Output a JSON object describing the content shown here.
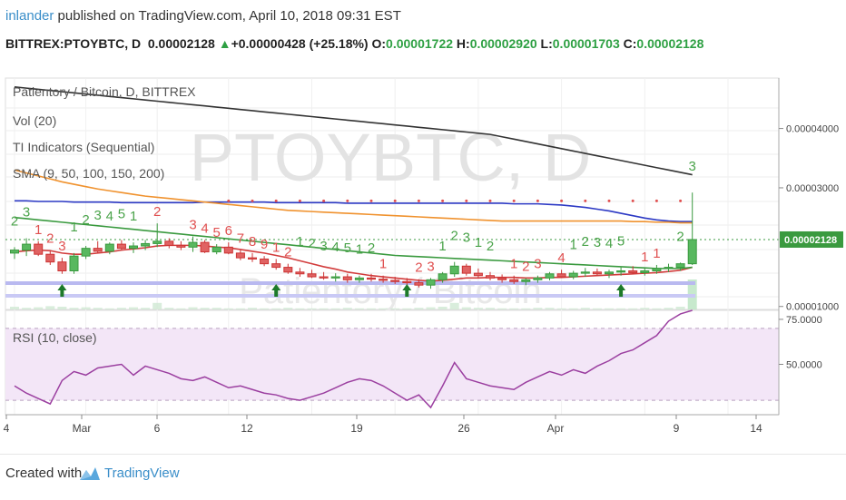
{
  "header": {
    "author": "inlander",
    "published": "published on TradingView.com, April 10, 2018 09:31 EST",
    "symbol": "BITTREX:PTOYBTC, D",
    "last": "0.00002128",
    "change": "+0.00000428 (+25.18%)",
    "o_label": "O:",
    "o_value": "0.00001722",
    "h_label": "H:",
    "h_value": "0.00002920",
    "l_label": "L:",
    "l_value": "0.00001703",
    "c_label": "C:",
    "c_value": "0.00002128"
  },
  "footer": {
    "created_with": "Created with",
    "brand": "TradingView"
  },
  "colors": {
    "up": "#3a9a3f",
    "down": "#cc3333",
    "sma9": "#d23c3c",
    "sma50": "#3a9a3f",
    "sma100": "#2c39c4",
    "sma150": "#f0922e",
    "sma200": "#333333",
    "rsi": "#9b3fa0",
    "td_buy": "#e05050",
    "td_sell": "#4aa34a",
    "price_badge": "#3a9a3f"
  },
  "chart_data": [
    {
      "type": "candlestick",
      "title": "Patientory / Bitcoin, D, BITTREX",
      "watermark": "PTOYBTC, D",
      "watermark_sub": "Patientory / Bitcoin",
      "legend": [
        "Vol (20)",
        "TI Indicators (Sequential)",
        "SMA (9, 50, 100, 150, 200)"
      ],
      "ylim": [
        9.5e-06,
        4.85e-05
      ],
      "y_ticks": [
        "0.00004000",
        "0.00003000",
        "0.00001000"
      ],
      "last_price_label": "0.00002128",
      "x_ticks": [
        "4",
        "Mar",
        "6",
        "12",
        "19",
        "26",
        "Apr",
        "9",
        "14"
      ],
      "candles": [
        [
          1.9,
          2.0,
          1.8,
          1.95
        ],
        [
          1.95,
          2.15,
          1.85,
          2.05
        ],
        [
          2.05,
          2.1,
          1.85,
          1.88
        ],
        [
          1.88,
          1.95,
          1.7,
          1.75
        ],
        [
          1.75,
          1.82,
          1.55,
          1.6
        ],
        [
          1.6,
          1.9,
          1.55,
          1.85
        ],
        [
          1.85,
          2.02,
          1.8,
          1.98
        ],
        [
          1.98,
          2.1,
          1.9,
          1.93
        ],
        [
          1.93,
          2.08,
          1.88,
          2.05
        ],
        [
          2.05,
          2.12,
          1.95,
          1.98
        ],
        [
          1.98,
          2.08,
          1.9,
          2.02
        ],
        [
          2.02,
          2.12,
          1.95,
          2.06
        ],
        [
          2.06,
          2.4,
          2.0,
          2.1
        ],
        [
          2.1,
          2.15,
          1.98,
          2.03
        ],
        [
          2.03,
          2.1,
          1.95,
          2.0
        ],
        [
          2.0,
          2.18,
          1.92,
          2.08
        ],
        [
          2.08,
          2.12,
          1.9,
          1.92
        ],
        [
          1.92,
          2.05,
          1.88,
          2.0
        ],
        [
          2.0,
          2.08,
          1.88,
          1.9
        ],
        [
          1.9,
          1.95,
          1.78,
          1.82
        ],
        [
          1.82,
          1.9,
          1.75,
          1.8
        ],
        [
          1.8,
          1.85,
          1.68,
          1.72
        ],
        [
          1.72,
          1.8,
          1.62,
          1.66
        ],
        [
          1.66,
          1.72,
          1.55,
          1.58
        ],
        [
          1.58,
          1.65,
          1.5,
          1.55
        ],
        [
          1.55,
          1.62,
          1.48,
          1.5
        ],
        [
          1.5,
          1.58,
          1.45,
          1.48
        ],
        [
          1.48,
          1.56,
          1.42,
          1.5
        ],
        [
          1.5,
          1.55,
          1.4,
          1.45
        ],
        [
          1.45,
          1.52,
          1.4,
          1.48
        ],
        [
          1.48,
          1.55,
          1.42,
          1.46
        ],
        [
          1.46,
          1.52,
          1.4,
          1.44
        ],
        [
          1.44,
          1.5,
          1.38,
          1.42
        ],
        [
          1.42,
          1.48,
          1.36,
          1.4
        ],
        [
          1.4,
          1.46,
          1.32,
          1.36
        ],
        [
          1.36,
          1.48,
          1.3,
          1.45
        ],
        [
          1.45,
          1.58,
          1.4,
          1.55
        ],
        [
          1.55,
          1.75,
          1.5,
          1.68
        ],
        [
          1.68,
          1.72,
          1.52,
          1.56
        ],
        [
          1.56,
          1.64,
          1.48,
          1.52
        ],
        [
          1.52,
          1.58,
          1.44,
          1.48
        ],
        [
          1.48,
          1.54,
          1.4,
          1.45
        ],
        [
          1.45,
          1.52,
          1.38,
          1.42
        ],
        [
          1.42,
          1.48,
          1.36,
          1.45
        ],
        [
          1.45,
          1.52,
          1.4,
          1.48
        ],
        [
          1.48,
          1.58,
          1.44,
          1.55
        ],
        [
          1.55,
          1.62,
          1.48,
          1.5
        ],
        [
          1.5,
          1.6,
          1.46,
          1.56
        ],
        [
          1.56,
          1.65,
          1.5,
          1.58
        ],
        [
          1.58,
          1.64,
          1.52,
          1.55
        ],
        [
          1.55,
          1.62,
          1.48,
          1.58
        ],
        [
          1.58,
          1.66,
          1.52,
          1.6
        ],
        [
          1.6,
          1.68,
          1.55,
          1.57
        ],
        [
          1.57,
          1.64,
          1.52,
          1.6
        ],
        [
          1.6,
          1.7,
          1.55,
          1.64
        ],
        [
          1.64,
          1.72,
          1.58,
          1.66
        ],
        [
          1.66,
          1.74,
          1.6,
          1.72
        ],
        [
          1.72,
          2.92,
          1.7,
          2.128
        ]
      ],
      "volume": [
        0.05,
        0.03,
        0.04,
        0.06,
        0.05,
        0.03,
        0.04,
        0.03,
        0.02,
        0.03,
        0.04,
        0.03,
        0.12,
        0.03,
        0.02,
        0.04,
        0.03,
        0.03,
        0.02,
        0.02,
        0.03,
        0.02,
        0.02,
        0.03,
        0.02,
        0.02,
        0.02,
        0.02,
        0.03,
        0.02,
        0.02,
        0.02,
        0.02,
        0.02,
        0.03,
        0.04,
        0.05,
        0.12,
        0.04,
        0.03,
        0.03,
        0.02,
        0.02,
        0.02,
        0.03,
        0.03,
        0.02,
        0.02,
        0.03,
        0.02,
        0.02,
        0.02,
        0.02,
        0.03,
        0.02,
        0.03,
        0.05,
        0.55
      ],
      "sma": {
        "sma9": [
          1.92,
          1.94,
          1.95,
          1.94,
          1.9,
          1.88,
          1.88,
          1.9,
          1.92,
          1.95,
          1.97,
          1.99,
          2.02,
          2.03,
          2.03,
          2.03,
          2.02,
          2.0,
          1.99,
          1.96,
          1.93,
          1.9,
          1.86,
          1.82,
          1.77,
          1.72,
          1.67,
          1.63,
          1.58,
          1.55,
          1.52,
          1.5,
          1.48,
          1.46,
          1.44,
          1.43,
          1.44,
          1.46,
          1.48,
          1.48,
          1.49,
          1.49,
          1.49,
          1.48,
          1.48,
          1.49,
          1.49,
          1.5,
          1.51,
          1.52,
          1.53,
          1.54,
          1.55,
          1.56,
          1.57,
          1.59,
          1.61,
          1.66
        ],
        "sma50": [
          2.5,
          2.48,
          2.46,
          2.44,
          2.42,
          2.4,
          2.38,
          2.36,
          2.34,
          2.32,
          2.3,
          2.28,
          2.26,
          2.24,
          2.22,
          2.2,
          2.18,
          2.16,
          2.14,
          2.12,
          2.1,
          2.08,
          2.06,
          2.04,
          2.02,
          2.0,
          1.98,
          1.96,
          1.94,
          1.92,
          1.9,
          1.88,
          1.86,
          1.85,
          1.84,
          1.83,
          1.82,
          1.81,
          1.8,
          1.79,
          1.78,
          1.77,
          1.76,
          1.75,
          1.74,
          1.73,
          1.72,
          1.71,
          1.7,
          1.69,
          1.68,
          1.67,
          1.66,
          1.65,
          1.64,
          1.64,
          1.64,
          1.66
        ],
        "sma100": [
          2.78,
          2.78,
          2.77,
          2.77,
          2.77,
          2.76,
          2.76,
          2.76,
          2.76,
          2.75,
          2.75,
          2.75,
          2.75,
          2.75,
          2.75,
          2.75,
          2.76,
          2.76,
          2.76,
          2.76,
          2.76,
          2.76,
          2.75,
          2.75,
          2.75,
          2.75,
          2.75,
          2.75,
          2.74,
          2.74,
          2.74,
          2.74,
          2.74,
          2.74,
          2.74,
          2.74,
          2.74,
          2.74,
          2.74,
          2.74,
          2.74,
          2.74,
          2.73,
          2.73,
          2.73,
          2.72,
          2.71,
          2.69,
          2.67,
          2.64,
          2.61,
          2.57,
          2.53,
          2.49,
          2.46,
          2.44,
          2.43,
          2.43
        ],
        "sma150": [
          3.3,
          3.25,
          3.2,
          3.15,
          3.1,
          3.06,
          3.02,
          2.98,
          2.95,
          2.92,
          2.89,
          2.86,
          2.84,
          2.82,
          2.8,
          2.78,
          2.76,
          2.74,
          2.72,
          2.7,
          2.68,
          2.66,
          2.64,
          2.62,
          2.61,
          2.6,
          2.59,
          2.58,
          2.57,
          2.56,
          2.55,
          2.54,
          2.53,
          2.52,
          2.51,
          2.5,
          2.49,
          2.48,
          2.47,
          2.46,
          2.45,
          2.44,
          2.44,
          2.44,
          2.44,
          2.44,
          2.44,
          2.44,
          2.44,
          2.44,
          2.44,
          2.44,
          2.43,
          2.43,
          2.42,
          2.42,
          2.41,
          2.41
        ],
        "sma200": [
          4.7,
          4.68,
          4.66,
          4.64,
          4.62,
          4.6,
          4.58,
          4.56,
          4.54,
          4.52,
          4.5,
          4.48,
          4.46,
          4.44,
          4.42,
          4.4,
          4.38,
          4.36,
          4.34,
          4.32,
          4.3,
          4.28,
          4.26,
          4.24,
          4.22,
          4.2,
          4.18,
          4.16,
          4.14,
          4.12,
          4.1,
          4.08,
          4.06,
          4.04,
          4.02,
          4.0,
          3.98,
          3.96,
          3.94,
          3.92,
          3.9,
          3.86,
          3.82,
          3.78,
          3.74,
          3.7,
          3.66,
          3.62,
          3.58,
          3.54,
          3.5,
          3.46,
          3.42,
          3.38,
          3.34,
          3.3,
          3.26,
          3.22
        ]
      },
      "td_buy": [
        {
          "i": 2,
          "n": "1"
        },
        {
          "i": 3,
          "n": "2"
        },
        {
          "i": 4,
          "n": "3"
        },
        {
          "i": 12,
          "n": "2"
        },
        {
          "i": 15,
          "n": "3"
        },
        {
          "i": 16,
          "n": "4"
        },
        {
          "i": 17,
          "n": "5"
        },
        {
          "i": 18,
          "n": "6"
        },
        {
          "i": 19,
          "n": "7"
        },
        {
          "i": 20,
          "n": "8"
        },
        {
          "i": 21,
          "n": "9"
        },
        {
          "i": 22,
          "n": "1"
        },
        {
          "i": 23,
          "n": "2"
        },
        {
          "i": 31,
          "n": "1"
        },
        {
          "i": 34,
          "n": "2"
        },
        {
          "i": 35,
          "n": "3"
        },
        {
          "i": 42,
          "n": "1"
        },
        {
          "i": 43,
          "n": "2"
        },
        {
          "i": 44,
          "n": "3"
        },
        {
          "i": 46,
          "n": "4"
        },
        {
          "i": 53,
          "n": "1"
        },
        {
          "i": 54,
          "n": "1"
        }
      ],
      "td_sell": [
        {
          "i": 0,
          "n": "2"
        },
        {
          "i": 1,
          "n": "3"
        },
        {
          "i": 5,
          "n": "1"
        },
        {
          "i": 6,
          "n": "2"
        },
        {
          "i": 7,
          "n": "3"
        },
        {
          "i": 8,
          "n": "4"
        },
        {
          "i": 9,
          "n": "5"
        },
        {
          "i": 10,
          "n": "1"
        },
        {
          "i": 24,
          "n": "1"
        },
        {
          "i": 25,
          "n": "2"
        },
        {
          "i": 26,
          "n": "3"
        },
        {
          "i": 27,
          "n": "4"
        },
        {
          "i": 28,
          "n": "5"
        },
        {
          "i": 29,
          "n": "1"
        },
        {
          "i": 30,
          "n": "2"
        },
        {
          "i": 36,
          "n": "1"
        },
        {
          "i": 37,
          "n": "2"
        },
        {
          "i": 38,
          "n": "3"
        },
        {
          "i": 39,
          "n": "1"
        },
        {
          "i": 40,
          "n": "2"
        },
        {
          "i": 47,
          "n": "1"
        },
        {
          "i": 48,
          "n": "2"
        },
        {
          "i": 49,
          "n": "3"
        },
        {
          "i": 50,
          "n": "4"
        },
        {
          "i": 51,
          "n": "5"
        },
        {
          "i": 56,
          "n": "2"
        },
        {
          "i": 57,
          "n": "3"
        }
      ],
      "up_arrows": [
        4,
        22,
        33,
        51
      ]
    },
    {
      "type": "line",
      "title": "RSI (10, close)",
      "ylim": [
        22,
        80
      ],
      "y_ticks": [
        "75.0000",
        "50.0000"
      ],
      "bands": [
        70,
        30
      ],
      "values": [
        38,
        34,
        31,
        28,
        41,
        46,
        44,
        48,
        49,
        50,
        44,
        49,
        47,
        45,
        42,
        41,
        43,
        40,
        37,
        38,
        36,
        34,
        33,
        31,
        30,
        32,
        34,
        37,
        40,
        42,
        41,
        38,
        34,
        30,
        33,
        26,
        38,
        51,
        42,
        40,
        38,
        37,
        36,
        40,
        43,
        46,
        44,
        47,
        45,
        49,
        52,
        56,
        58,
        62,
        66,
        74,
        78,
        80
      ]
    }
  ]
}
